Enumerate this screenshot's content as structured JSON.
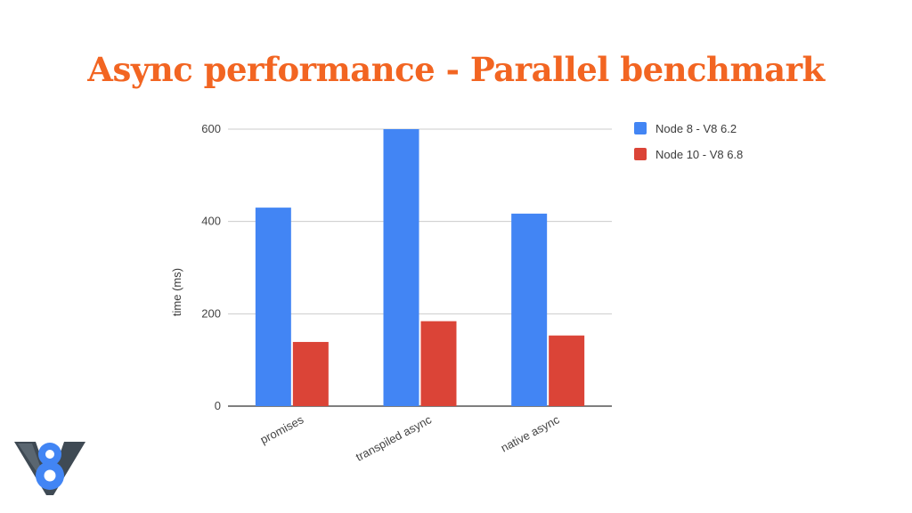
{
  "title": "Async performance - Parallel benchmark",
  "logo_icon": "v8-logo-icon",
  "colors": {
    "title": "#f26522",
    "series": [
      "#4285f4",
      "#db4437"
    ]
  },
  "chart_data": {
    "type": "bar",
    "categories": [
      "promises",
      "transpiled async",
      "native async"
    ],
    "series": [
      {
        "name": "Node 8 - V8 6.2",
        "values": [
          430,
          600,
          417
        ]
      },
      {
        "name": "Node 10 - V8 6.8",
        "values": [
          139,
          184,
          153
        ]
      }
    ],
    "title": "",
    "xlabel": "",
    "ylabel": "time (ms)",
    "ylim": [
      0,
      620
    ],
    "yticks": [
      0,
      200,
      400,
      600
    ],
    "grid": true,
    "legend": "right"
  }
}
